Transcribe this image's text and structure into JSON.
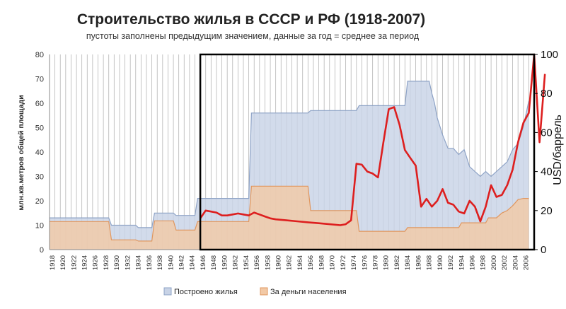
{
  "chart_data": {
    "type": "area",
    "title": "Строительство жилья в СССР и РФ (1918-2007)",
    "subtitle": "пустоты заполнены предыдущим значением, данные за год = среднее за период",
    "ylabel": "млн.кв.метров общей площади",
    "ylabel_right": "USD/баррель",
    "ylim": [
      0,
      80
    ],
    "ylim_right": [
      0,
      100
    ],
    "yticks": [
      "0",
      "10",
      "20",
      "30",
      "40",
      "50",
      "60",
      "70",
      "80"
    ],
    "yticks_right": [
      "0",
      "20",
      "40",
      "60",
      "80",
      "100"
    ],
    "xlim": [
      1918,
      2008
    ],
    "x_tick_labels": [
      "1918",
      "1920",
      "1922",
      "1924",
      "1926",
      "1928",
      "1930",
      "1932",
      "1934",
      "1936",
      "1938",
      "1940",
      "1942",
      "1944",
      "1946",
      "1948",
      "1950",
      "1952",
      "1954",
      "1956",
      "1958",
      "1960",
      "1962",
      "1964",
      "1966",
      "1968",
      "1970",
      "1972",
      "1974",
      "1976",
      "1978",
      "1980",
      "1982",
      "1984",
      "1986",
      "1988",
      "1990",
      "1992",
      "1994",
      "1996",
      "1998",
      "2000",
      "2002",
      "2004",
      "2006"
    ],
    "grid": "vertical",
    "legend_position": "bottom",
    "colors": {
      "total_fill": "#c8d3e6",
      "total_line": "#8ea3c6",
      "private_fill": "#f2c9a6",
      "private_line": "#e0965e",
      "oil_line": "#dd1f1f",
      "frame": "#000000",
      "grid": "#b5b5b5"
    },
    "series": [
      {
        "name": "Построено жилья",
        "axis": "left",
        "x": [
          1918,
          1929,
          1929.5,
          1934,
          1934.5,
          1937,
          1937.5,
          1941,
          1941.5,
          1945,
          1945.5,
          1955,
          1955.5,
          1966,
          1966.5,
          1975,
          1975.5,
          1984,
          1984.5,
          1987,
          1987.5,
          1988,
          1988.5,
          1989,
          1989.5,
          1990,
          1991,
          1992,
          1993,
          1994,
          1995,
          1996,
          1997,
          1998,
          1999,
          2000,
          2001,
          2002,
          2003,
          2004,
          2005,
          2006,
          2007
        ],
        "values": [
          13,
          13,
          10,
          10,
          9,
          9,
          15,
          15,
          14,
          14,
          21,
          21,
          56,
          56,
          57,
          57,
          59,
          59,
          69,
          69,
          69,
          69,
          69,
          64,
          60,
          54,
          47,
          41.5,
          41.5,
          39,
          41,
          34,
          32,
          30,
          32,
          30,
          32,
          34,
          36,
          41,
          43.5,
          50.5,
          61
        ],
        "style": "area"
      },
      {
        "name": "За деньги населения",
        "axis": "left",
        "x": [
          1918,
          1929,
          1929.5,
          1934,
          1934.5,
          1937,
          1937.5,
          1941,
          1941.5,
          1945,
          1945.5,
          1955,
          1955.5,
          1966,
          1966.5,
          1975,
          1975.5,
          1984,
          1984.5,
          1990,
          1990.5,
          1994,
          1994.5,
          1999,
          1999.5,
          2001,
          2002,
          2003,
          2004,
          2005,
          2006,
          2007
        ],
        "values": [
          11.5,
          11.5,
          4,
          4,
          3.5,
          3.5,
          11.8,
          11.8,
          8,
          8,
          11.5,
          11.5,
          26,
          26,
          16,
          16,
          7.5,
          7.5,
          9,
          9,
          9,
          9,
          11,
          11,
          13,
          13,
          15,
          16,
          18,
          20.5,
          21,
          21
        ],
        "style": "area"
      },
      {
        "name": "",
        "axis": "right",
        "x": [
          1946,
          1947,
          1948,
          1949,
          1950,
          1951,
          1952,
          1953,
          1954,
          1955,
          1956,
          1957,
          1958,
          1959,
          1960,
          1962,
          1964,
          1966,
          1968,
          1970,
          1972,
          1973,
          1974,
          1975,
          1976,
          1977,
          1978,
          1979,
          1980,
          1981,
          1982,
          1983,
          1984,
          1985,
          1986,
          1987,
          1988,
          1989,
          1990,
          1991,
          1992,
          1993,
          1994,
          1995,
          1996,
          1997,
          1998,
          1999,
          2000,
          2001,
          2002,
          2003,
          2004,
          2005,
          2006,
          2007,
          2008,
          2009,
          2010
        ],
        "values": [
          16,
          20,
          19.5,
          19,
          17.5,
          17.5,
          18,
          18.5,
          18,
          17.5,
          19,
          18,
          17,
          16,
          15.5,
          15,
          14.5,
          14,
          13.5,
          13,
          12.5,
          13,
          15,
          44,
          43.5,
          40,
          39,
          37,
          55,
          72,
          73,
          64,
          51,
          47,
          43,
          22,
          26,
          22,
          25,
          31,
          24,
          23,
          19.5,
          18.5,
          25,
          22,
          14.5,
          22,
          33,
          27,
          28,
          33,
          41,
          55,
          65,
          70,
          100,
          55,
          90
        ],
        "style": "line"
      }
    ]
  },
  "legend": [
    {
      "label": "Построено жилья",
      "swatch": "total"
    },
    {
      "label": "За деньги населения",
      "swatch": "private"
    }
  ]
}
